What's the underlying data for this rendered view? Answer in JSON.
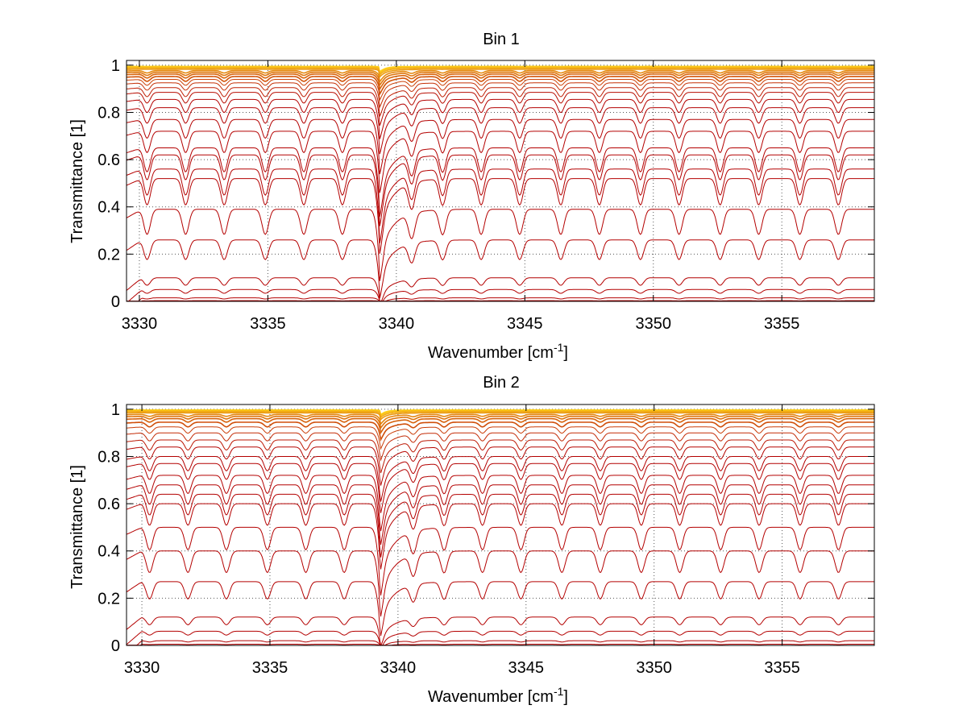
{
  "chart_data": [
    {
      "type": "line",
      "title": "Bin 1",
      "xlabel": "Wavenumber [cm",
      "xlabel_sup": "-1",
      "xlabel_end": "]",
      "ylabel": "Transmittance [1]",
      "xlim": [
        3329.5,
        3358.6
      ],
      "ylim": [
        0,
        1.02
      ],
      "xticks": [
        3330,
        3335,
        3340,
        3345,
        3350,
        3355
      ],
      "yticks": [
        0,
        0.2,
        0.4,
        0.6,
        0.8,
        1
      ],
      "xtick_labels": [
        "3330",
        "3335",
        "3340",
        "3345",
        "3350",
        "3355"
      ],
      "ytick_labels": [
        "0",
        "0.2",
        "0.4",
        "0.6",
        "0.8",
        "1"
      ],
      "grid": true,
      "feature_x": 3339.35,
      "line_positions": [
        3330.3,
        3331.8,
        3333.3,
        3334.9,
        3336.4,
        3337.9,
        3339.35,
        3340.6,
        3341.8,
        3343.3,
        3344.8,
        3346.4,
        3347.9,
        3349.5,
        3351.0,
        3352.6,
        3354.1,
        3355.7,
        3357.2
      ],
      "baselines": [
        0.995,
        0.992,
        0.988,
        0.983,
        0.977,
        0.97,
        0.962,
        0.952,
        0.94,
        0.925,
        0.905,
        0.885,
        0.855,
        0.82,
        0.77,
        0.72,
        0.65,
        0.62,
        0.56,
        0.52,
        0.39,
        0.26,
        0.1,
        0.05,
        0.015,
        0.003
      ],
      "line_depth_scale": 1.0,
      "series_color_range": [
        "#ffd21a",
        "#b40000"
      ]
    },
    {
      "type": "line",
      "title": "Bin 2",
      "xlabel": "Wavenumber [cm",
      "xlabel_sup": "-1",
      "xlabel_end": "]",
      "ylabel": "Transmittance [1]",
      "xlim": [
        3329.4,
        3358.6
      ],
      "ylim": [
        0,
        1.02
      ],
      "xticks": [
        3330,
        3335,
        3340,
        3345,
        3350,
        3355
      ],
      "yticks": [
        0,
        0.2,
        0.4,
        0.6,
        0.8,
        1
      ],
      "xtick_labels": [
        "3330",
        "3335",
        "3340",
        "3345",
        "3350",
        "3355"
      ],
      "ytick_labels": [
        "0",
        "0.2",
        "0.4",
        "0.6",
        "0.8",
        "1"
      ],
      "grid": true,
      "feature_x": 3339.3,
      "line_positions": [
        3330.3,
        3331.8,
        3333.3,
        3334.9,
        3336.4,
        3337.9,
        3339.3,
        3340.6,
        3341.8,
        3343.3,
        3344.8,
        3346.4,
        3347.9,
        3349.5,
        3351.0,
        3352.6,
        3354.1,
        3355.7,
        3357.2
      ],
      "baselines": [
        0.997,
        0.994,
        0.99,
        0.985,
        0.978,
        0.97,
        0.96,
        0.945,
        0.925,
        0.9,
        0.87,
        0.84,
        0.8,
        0.77,
        0.72,
        0.68,
        0.64,
        0.6,
        0.5,
        0.4,
        0.27,
        0.12,
        0.06,
        0.02,
        0.005
      ],
      "line_depth_scale": 0.85,
      "series_color_range": [
        "#ffd21a",
        "#b40000"
      ]
    }
  ]
}
